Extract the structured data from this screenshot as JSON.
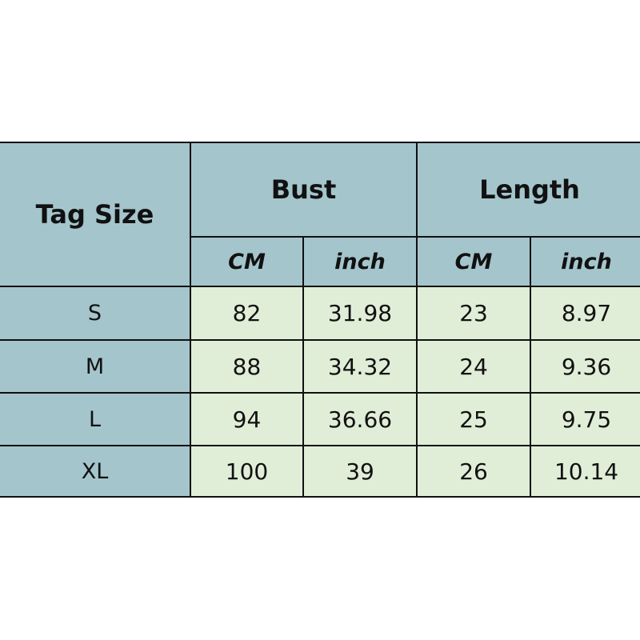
{
  "header": {
    "tag_size": "Tag Size",
    "bust": "Bust",
    "length": "Length"
  },
  "units": [
    "CM",
    "inch",
    "CM",
    "inch"
  ],
  "colors": {
    "header_bg": "#a4c5cc",
    "cell_bg": "#e0eed8",
    "border": "#111111"
  },
  "rows": [
    {
      "size": "S",
      "bust_cm": "82",
      "bust_inch": "31.98",
      "length_cm": "23",
      "length_inch": "8.97"
    },
    {
      "size": "M",
      "bust_cm": "88",
      "bust_inch": "34.32",
      "length_cm": "24",
      "length_inch": "9.36"
    },
    {
      "size": "L",
      "bust_cm": "94",
      "bust_inch": "36.66",
      "length_cm": "25",
      "length_inch": "9.75"
    },
    {
      "size": "XL",
      "bust_cm": "100",
      "bust_inch": "39",
      "length_cm": "26",
      "length_inch": "10.14"
    }
  ]
}
